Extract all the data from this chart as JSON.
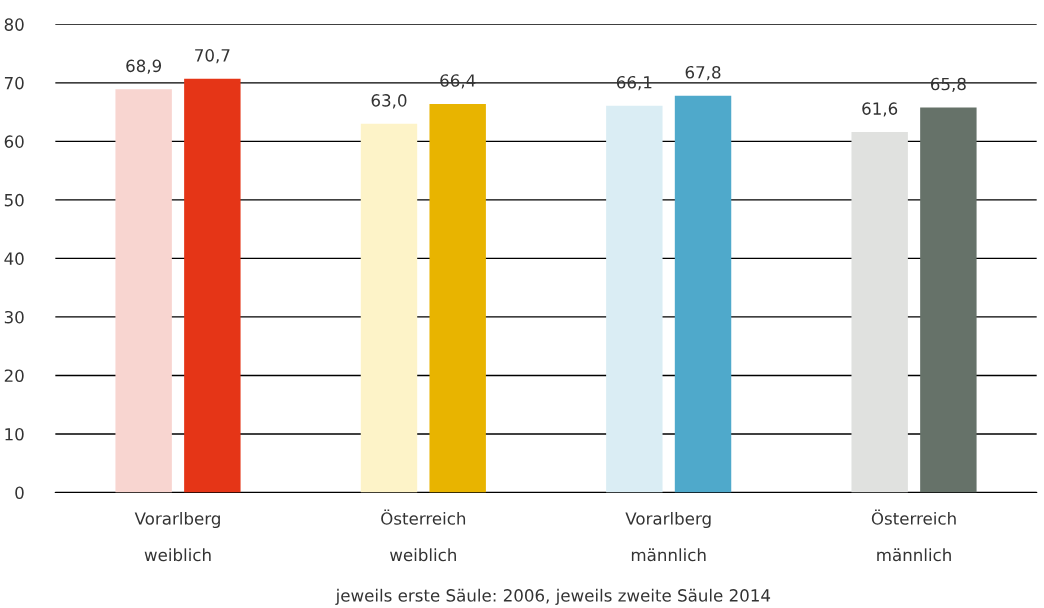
{
  "chart_data": {
    "type": "bar",
    "categories": [
      "Vorarlberg\nweiblich",
      "Österreich\nweiblich",
      "Vorarlberg\nmännlich",
      "Österreich\nmännlich"
    ],
    "series": [
      {
        "colors": [
          "#f8d5d0",
          "#fdf3c8",
          "#daedf4",
          "#e0e1df"
        ],
        "values": [
          68.9,
          63.0,
          66.1,
          61.6
        ],
        "value_labels": [
          "68,9",
          "63,0",
          "66,1",
          "61,6"
        ]
      },
      {
        "colors": [
          "#e53517",
          "#e8b400",
          "#4fa9cb",
          "#667269"
        ],
        "values": [
          70.7,
          66.4,
          67.8,
          65.8
        ],
        "value_labels": [
          "70,7",
          "66,4",
          "67,8",
          "65,8"
        ]
      }
    ],
    "ylim": [
      0,
      80
    ],
    "yticks": [
      0,
      10,
      20,
      30,
      40,
      50,
      60,
      70,
      80
    ],
    "grid": "y",
    "annotations": [
      "jeweils erste Säule: 2006, jeweils zweite Säule 2014"
    ]
  }
}
